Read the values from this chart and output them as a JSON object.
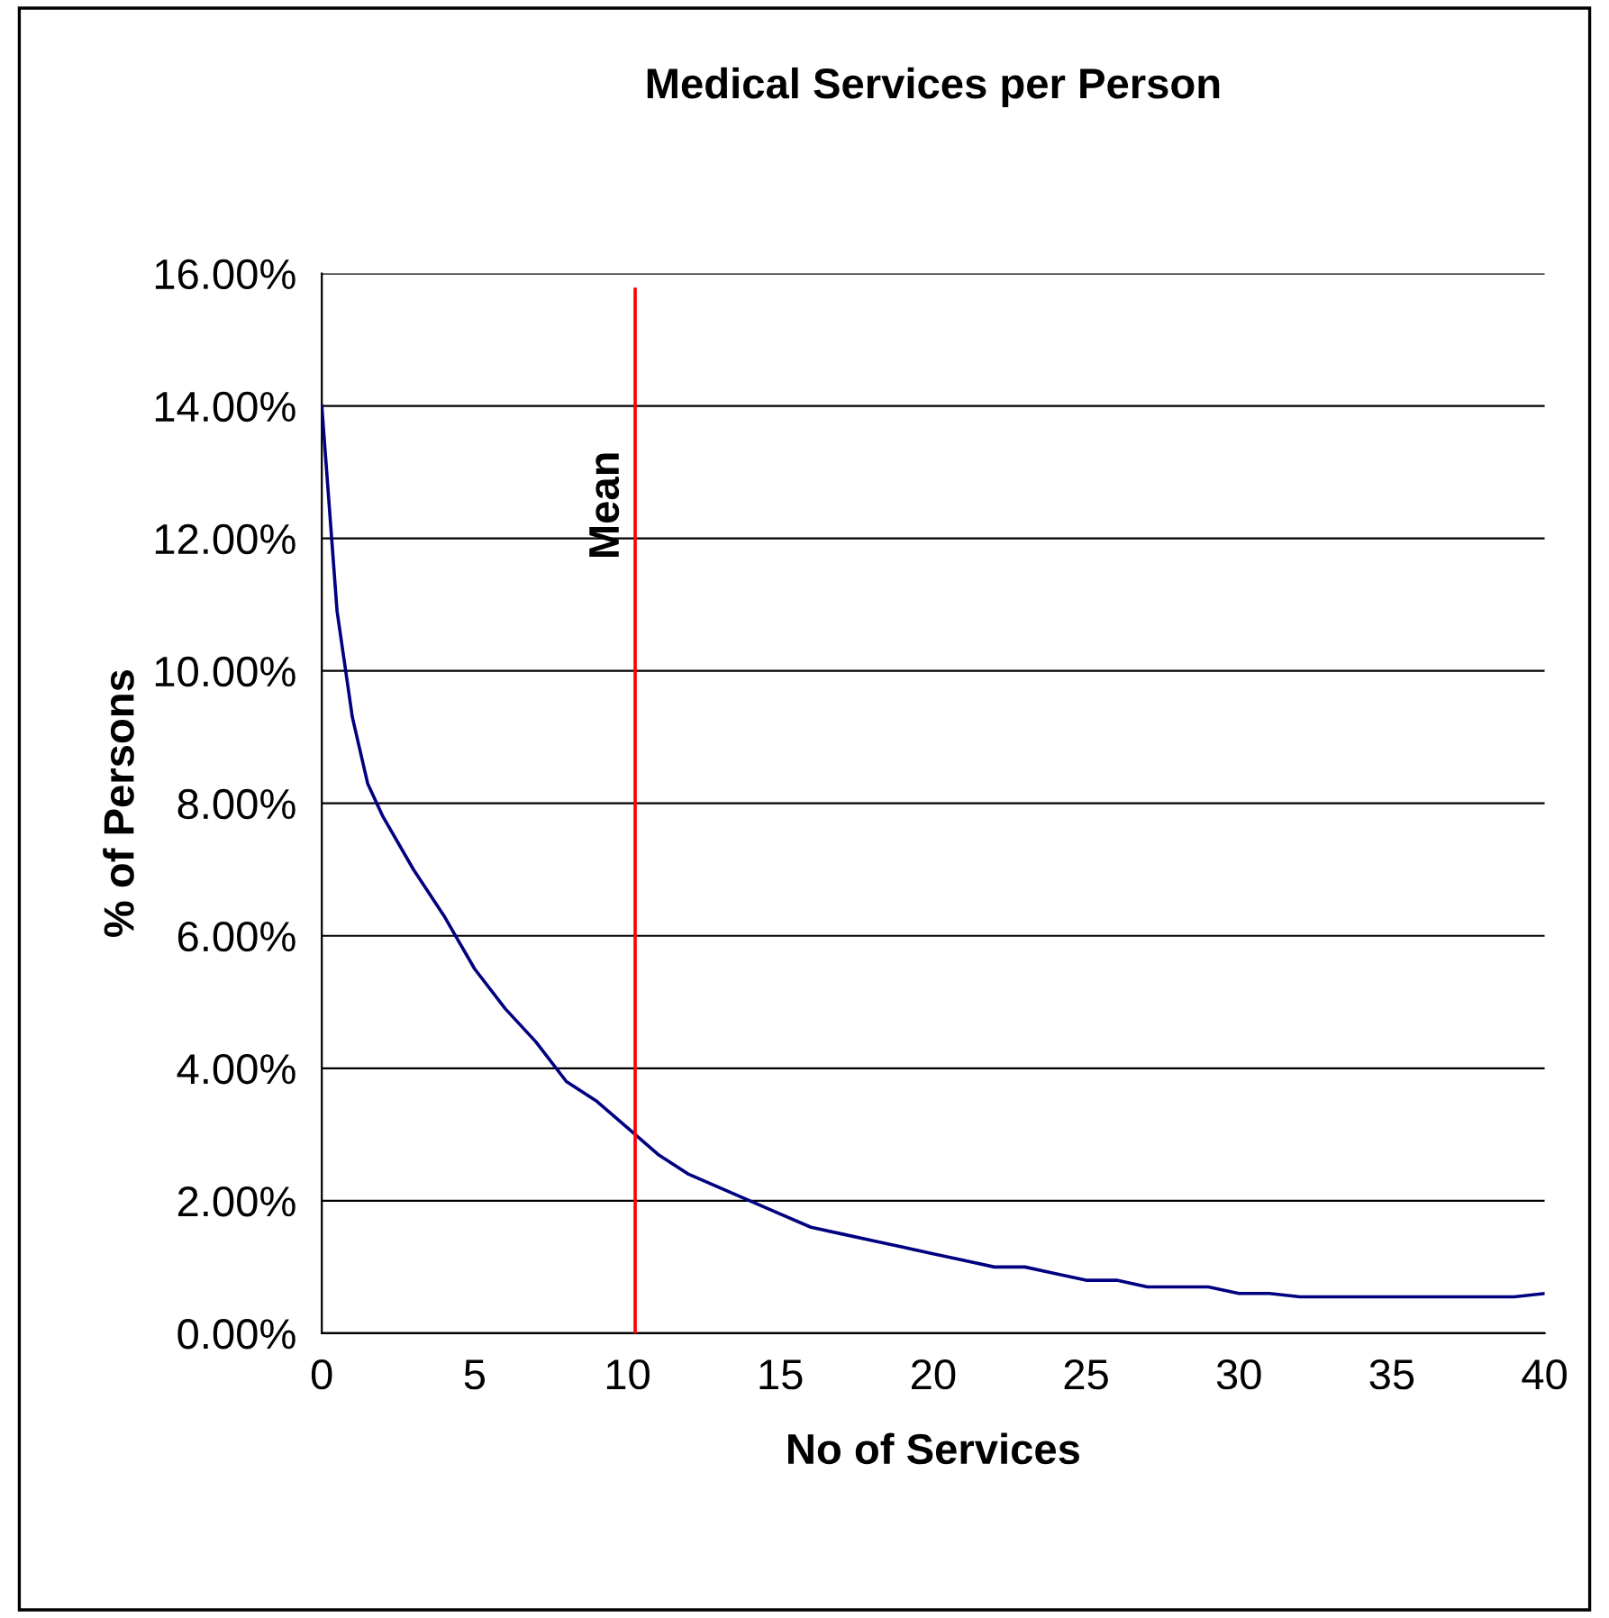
{
  "chart_data": {
    "type": "line",
    "title": "Medical Services per Person",
    "xlabel": "No of Services",
    "ylabel": "% of Persons",
    "x": [
      0,
      0.5,
      1,
      1.5,
      2,
      3,
      4,
      5,
      6,
      7,
      8,
      9,
      10,
      11,
      12,
      13,
      14,
      15,
      16,
      17,
      18,
      19,
      20,
      21,
      22,
      23,
      24,
      25,
      26,
      27,
      28,
      29,
      30,
      31,
      32,
      33,
      34,
      35,
      36,
      37,
      38,
      39,
      40
    ],
    "series": [
      {
        "color": "#000080",
        "values": [
          14.0,
          10.9,
          9.3,
          8.3,
          7.8,
          7.0,
          6.3,
          5.5,
          4.9,
          4.4,
          3.8,
          3.5,
          3.1,
          2.7,
          2.4,
          2.2,
          2.0,
          1.8,
          1.6,
          1.5,
          1.4,
          1.3,
          1.2,
          1.1,
          1.0,
          1.0,
          0.9,
          0.8,
          0.8,
          0.7,
          0.7,
          0.7,
          0.6,
          0.6,
          0.55,
          0.55,
          0.55,
          0.55,
          0.55,
          0.55,
          0.55,
          0.55,
          0.6
        ]
      }
    ],
    "xlim": [
      0,
      40
    ],
    "xticks": [
      0,
      5,
      10,
      15,
      20,
      25,
      30,
      35,
      40
    ],
    "ylim": [
      0,
      16
    ],
    "yticks": [
      {
        "value": 0,
        "label": "0.00%"
      },
      {
        "value": 2,
        "label": "2.00%"
      },
      {
        "value": 4,
        "label": "4.00%"
      },
      {
        "value": 6,
        "label": "6.00%"
      },
      {
        "value": 8,
        "label": "8.00%"
      },
      {
        "value": 10,
        "label": "10.00%"
      },
      {
        "value": 12,
        "label": "12.00%"
      },
      {
        "value": 14,
        "label": "14.00%"
      },
      {
        "value": 16,
        "label": "16.00%"
      }
    ],
    "ref_lines": [
      {
        "axis": "x",
        "value": 10.25,
        "label": "Mean",
        "color": "#ff0000"
      }
    ],
    "grid": "y",
    "marker": "none",
    "line_style": "solid",
    "legend": false
  }
}
